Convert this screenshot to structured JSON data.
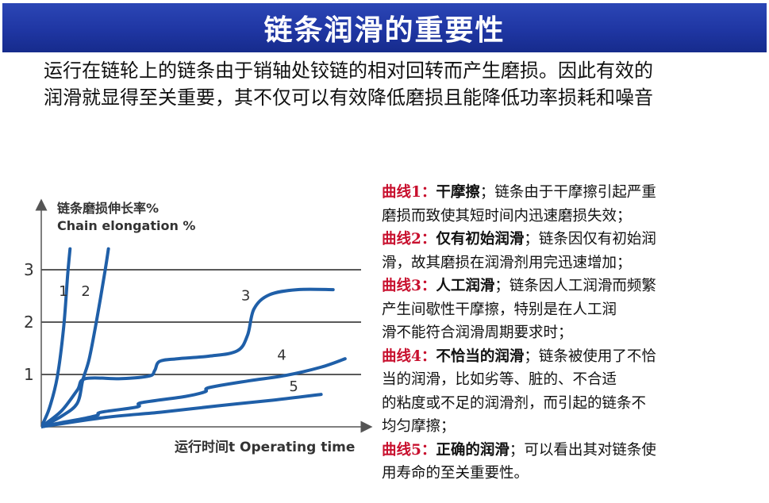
{
  "header": {
    "title": "链条润滑的重要性"
  },
  "intro": {
    "lines": [
      "运行在链轮上的链条由于销轴处铰链的相对回转而产生磨损。因此有效的",
      "润滑就显得至关重要，其不仅可以有效降低磨损且能降低功率损耗和噪音"
    ]
  },
  "chart_data": {
    "type": "line",
    "ylabel": "链条磨损伸长率%",
    "ylabel_en": "Chain elongation %",
    "xlabel": "运行时间t Operating time",
    "y_ticks": [
      "1",
      "2",
      "3"
    ],
    "ylim": [
      0,
      3.4
    ],
    "grid": true,
    "series": [
      {
        "name": "1",
        "points": [
          [
            0,
            0
          ],
          [
            0.1,
            0.35
          ],
          [
            0.2,
            0.95
          ],
          [
            0.28,
            1.9
          ],
          [
            0.33,
            2.9
          ],
          [
            0.36,
            3.4
          ]
        ]
      },
      {
        "name": "2",
        "points": [
          [
            0,
            0
          ],
          [
            0.25,
            0.2
          ],
          [
            0.45,
            0.45
          ],
          [
            0.52,
            0.9
          ],
          [
            0.6,
            1.3
          ],
          [
            0.7,
            2.1
          ],
          [
            0.8,
            3.0
          ],
          [
            0.84,
            3.4
          ]
        ]
      },
      {
        "name": "3",
        "points": [
          [
            0,
            0
          ],
          [
            0.25,
            0.3
          ],
          [
            0.45,
            0.7
          ],
          [
            0.55,
            0.92
          ],
          [
            1.0,
            0.92
          ],
          [
            1.35,
            0.97
          ],
          [
            1.42,
            1.08
          ],
          [
            1.48,
            1.25
          ],
          [
            1.7,
            1.3
          ],
          [
            2.1,
            1.35
          ],
          [
            2.45,
            1.45
          ],
          [
            2.58,
            1.75
          ],
          [
            2.66,
            2.25
          ],
          [
            2.85,
            2.52
          ],
          [
            3.2,
            2.62
          ],
          [
            3.65,
            2.62
          ]
        ]
      },
      {
        "name": "4",
        "points": [
          [
            0,
            0
          ],
          [
            0.25,
            0.08
          ],
          [
            0.5,
            0.15
          ],
          [
            0.7,
            0.22
          ],
          [
            0.75,
            0.28
          ],
          [
            1.2,
            0.38
          ],
          [
            1.25,
            0.46
          ],
          [
            1.8,
            0.58
          ],
          [
            2.05,
            0.67
          ],
          [
            2.1,
            0.75
          ],
          [
            2.6,
            0.88
          ],
          [
            3.05,
            0.98
          ],
          [
            3.5,
            1.14
          ],
          [
            3.8,
            1.3
          ]
        ]
      },
      {
        "name": "5",
        "points": [
          [
            0,
            0
          ],
          [
            0.8,
            0.18
          ],
          [
            1.5,
            0.28
          ],
          [
            2.2,
            0.4
          ],
          [
            2.9,
            0.51
          ],
          [
            3.5,
            0.62
          ]
        ]
      }
    ],
    "annotations": [
      {
        "text": "1",
        "x": 0.22,
        "y": 2.5
      },
      {
        "text": "2",
        "x": 0.5,
        "y": 2.5
      },
      {
        "text": "3",
        "x": 2.5,
        "y": 2.42
      },
      {
        "text": "4",
        "x": 2.95,
        "y": 1.28
      },
      {
        "text": "5",
        "x": 3.1,
        "y": 0.68
      }
    ],
    "color": "#1f5fa8"
  },
  "descriptions": [
    {
      "label": "曲线1：",
      "name": "干摩擦",
      "lines": [
        "；链条由于干摩擦引起严重",
        "磨损而致使其短时间内迅速磨损失效；"
      ]
    },
    {
      "label": "曲线2：",
      "name": "仅有初始润滑",
      "lines": [
        "；链条因仅有初始润",
        "滑，故其磨损在润滑剂用完迅速增加；"
      ]
    },
    {
      "label": "曲线3：",
      "name": "人工润滑",
      "lines": [
        "；链条因人工润滑而频繁",
        "产生间歇性干摩擦，特别是在人工润",
        "滑不能符合润滑周期要求时；"
      ]
    },
    {
      "label": "曲线4：",
      "name": "不恰当的润滑",
      "lines": [
        "；链条被使用了不恰",
        "当的润滑，比如劣等、脏的、不合适",
        "的粘度或不足的润滑剂，而引起的链条不",
        "均匀摩擦；"
      ]
    },
    {
      "label": "曲线5：",
      "name": "正确的润滑",
      "lines": [
        "；可以看出其对链条使",
        "用寿命的至关重要性。"
      ]
    }
  ]
}
